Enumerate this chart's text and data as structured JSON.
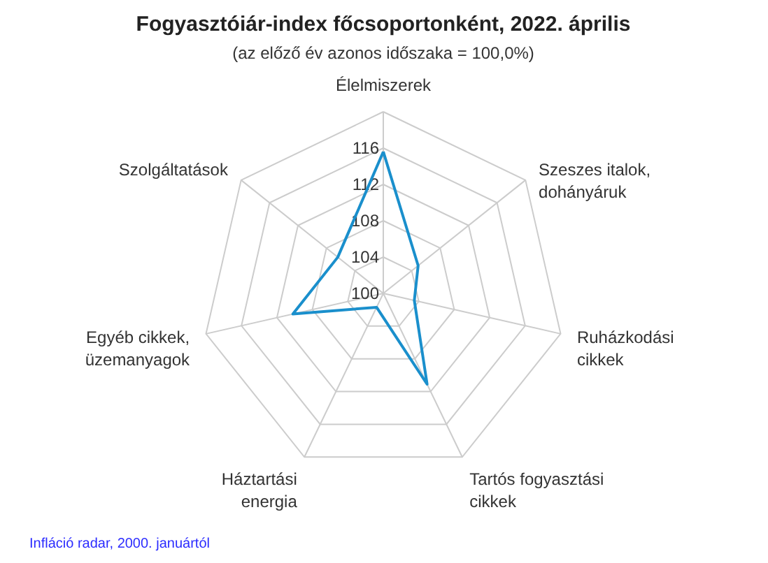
{
  "chart_data": {
    "type": "radar",
    "title": "Fogyasztóiár-index főcsoportonként, 2022. április",
    "subtitle": "(az előző év azonos időszaka = 100,0%)",
    "categories": [
      "Élelmiszerek",
      "Szeszes italok, dohányáruk",
      "Ruházkodási cikkek",
      "Tartós fogyasztási cikkek",
      "Háztartási energia",
      "Egyéb cikkek, üzemanyagok",
      "Szolgáltatások"
    ],
    "series": [
      {
        "color": "#1a8fcc",
        "values": [
          115.6,
          104.9,
          103.5,
          111.1,
          101.7,
          110.2,
          106.4
        ]
      }
    ],
    "ylim": [
      100,
      120
    ],
    "yticks": [
      100,
      104,
      108,
      112,
      116
    ],
    "grid": true,
    "marker": "none",
    "line_style": "solid",
    "annotations": [
      "Infláció radar, 2000. januártól"
    ]
  }
}
